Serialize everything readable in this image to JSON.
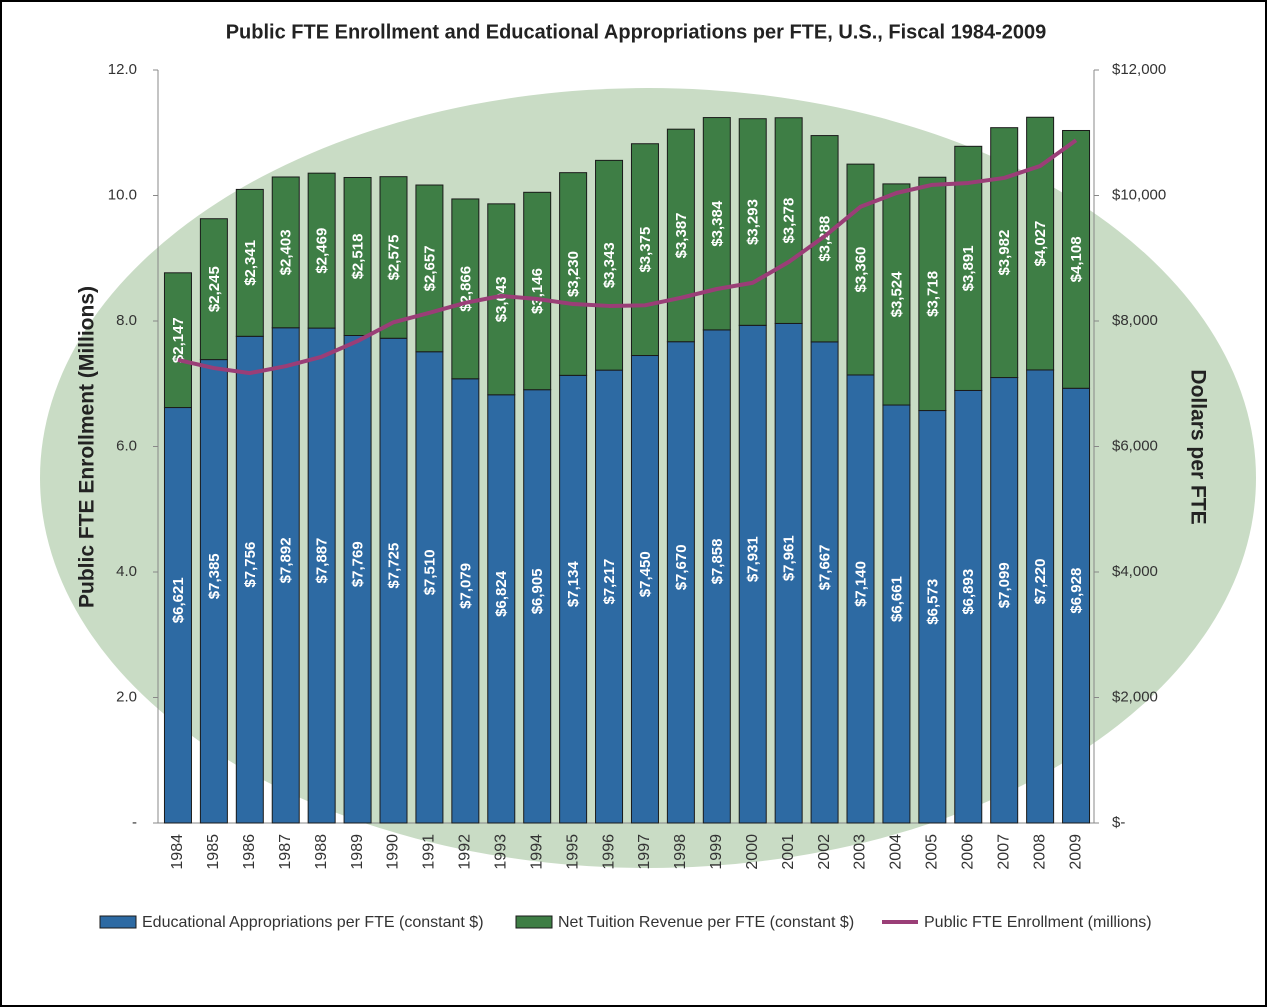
{
  "chart_data": {
    "type": "bar-line",
    "title": "Public FTE Enrollment and Educational Appropriations per FTE, U.S., Fiscal 1984-2009",
    "y_label": "Public FTE Enrollment (Millions)",
    "y2_label": "Dollars per FTE",
    "categories": [
      "1984",
      "1985",
      "1986",
      "1987",
      "1988",
      "1989",
      "1990",
      "1991",
      "1992",
      "1993",
      "1994",
      "1995",
      "1996",
      "1997",
      "1998",
      "1999",
      "2000",
      "2001",
      "2002",
      "2003",
      "2004",
      "2005",
      "2006",
      "2007",
      "2008",
      "2009"
    ],
    "ylim": [
      0,
      12
    ],
    "yticks": [
      {
        "value": 0,
        "label": "-"
      },
      {
        "value": 2,
        "label": "2.0"
      },
      {
        "value": 4,
        "label": "4.0"
      },
      {
        "value": 6,
        "label": "6.0"
      },
      {
        "value": 8,
        "label": "8.0"
      },
      {
        "value": 10,
        "label": "10.0"
      },
      {
        "value": 12,
        "label": "12.0"
      }
    ],
    "y2lim": [
      0,
      12000
    ],
    "y2ticks": [
      {
        "value": 0,
        "label": "$-"
      },
      {
        "value": 2000,
        "label": "$2,000"
      },
      {
        "value": 4000,
        "label": "$4,000"
      },
      {
        "value": 6000,
        "label": "$6,000"
      },
      {
        "value": 8000,
        "label": "$8,000"
      },
      {
        "value": 10000,
        "label": "$10,000"
      },
      {
        "value": 12000,
        "label": "$12,000"
      }
    ],
    "series": [
      {
        "name": "Educational Appropriations per FTE (constant $)",
        "color": "#2d6aa3",
        "axis": "y2",
        "kind": "bar",
        "values": [
          6621,
          7385,
          7756,
          7892,
          7887,
          7769,
          7725,
          7510,
          7079,
          6824,
          6905,
          7134,
          7217,
          7450,
          7670,
          7858,
          7931,
          7961,
          7667,
          7140,
          6661,
          6573,
          6893,
          7099,
          7220,
          6928
        ],
        "value_labels": [
          "$6,621",
          "$7,385",
          "$7,756",
          "$7,892",
          "$7,887",
          "$7,769",
          "$7,725",
          "$7,510",
          "$7,079",
          "$6,824",
          "$6,905",
          "$7,134",
          "$7,217",
          "$7,450",
          "$7,670",
          "$7,858",
          "$7,931",
          "$7,961",
          "$7,667",
          "$7,140",
          "$6,661",
          "$6,573",
          "$6,893",
          "$7,099",
          "$7,220",
          "$6,928"
        ]
      },
      {
        "name": "Net Tuition Revenue per FTE (constant $)",
        "color": "#3e7e45",
        "axis": "y2",
        "kind": "bar",
        "values": [
          2147,
          2245,
          2341,
          2403,
          2469,
          2518,
          2575,
          2657,
          2866,
          3043,
          3146,
          3230,
          3343,
          3375,
          3387,
          3384,
          3293,
          3278,
          3288,
          3360,
          3524,
          3718,
          3891,
          3982,
          4027,
          4108
        ],
        "value_labels": [
          "$2,147",
          "$2,245",
          "$2,341",
          "$2,403",
          "$2,469",
          "$2,518",
          "$2,575",
          "$2,657",
          "$2,866",
          "$3,043",
          "$3,146",
          "$3,230",
          "$3,343",
          "$3,375",
          "$3,387",
          "$3,384",
          "$3,293",
          "$3,278",
          "$3,288",
          "$3,360",
          "$3,524",
          "$3,718",
          "$3,891",
          "$3,982",
          "$4,027",
          "$4,108"
        ]
      },
      {
        "name": "Public FTE Enrollment (millions)",
        "color": "#9a3e77",
        "axis": "y",
        "kind": "line",
        "values": [
          7.38,
          7.25,
          7.17,
          7.28,
          7.43,
          7.68,
          7.98,
          8.13,
          8.29,
          8.4,
          8.35,
          8.27,
          8.24,
          8.25,
          8.37,
          8.51,
          8.61,
          8.94,
          9.35,
          9.82,
          10.04,
          10.17,
          10.2,
          10.28,
          10.47,
          10.88
        ]
      }
    ]
  }
}
